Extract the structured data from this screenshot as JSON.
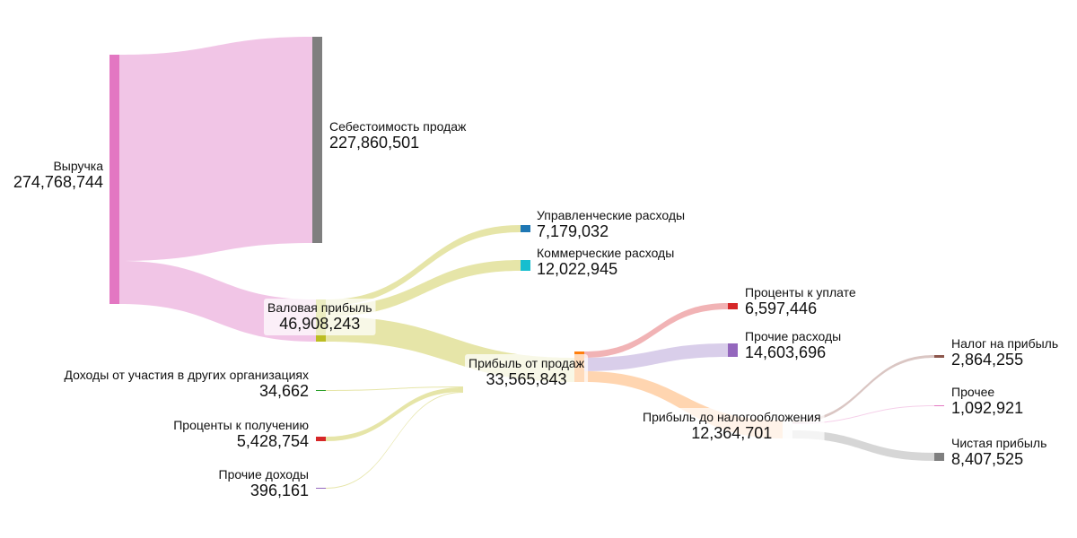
{
  "chart_data": {
    "type": "sankey",
    "nodes": [
      {
        "id": "revenue",
        "name": "Выручка",
        "value": "274,768,744",
        "color": "#e377c2"
      },
      {
        "id": "cogs",
        "name": "Себестоимость продаж",
        "value": "227,860,501",
        "color": "#7f7f7f"
      },
      {
        "id": "gross",
        "name": "Валовая прибыль",
        "value": "46,908,243",
        "color": "#bcbd22"
      },
      {
        "id": "admin",
        "name": "Управленческие расходы",
        "value": "7,179,032",
        "color": "#1f77b4"
      },
      {
        "id": "selling",
        "name": "Коммерческие расходы",
        "value": "12,022,945",
        "color": "#17becf"
      },
      {
        "id": "op",
        "name": "Прибыль от продаж",
        "value": "33,565,843",
        "color": "#ff7f0e"
      },
      {
        "id": "part",
        "name": "Доходы от участия в других организациях",
        "value": "34,662",
        "color": "#2ca02c"
      },
      {
        "id": "intrec",
        "name": "Проценты к получению",
        "value": "5,428,754",
        "color": "#d62728"
      },
      {
        "id": "othinc",
        "name": "Прочие доходы",
        "value": "396,161",
        "color": "#9467bd"
      },
      {
        "id": "intpay",
        "name": "Проценты к уплате",
        "value": "6,597,446",
        "color": "#d62728"
      },
      {
        "id": "othexp",
        "name": "Прочие расходы",
        "value": "14,603,696",
        "color": "#9467bd"
      },
      {
        "id": "pretax",
        "name": "Прибыль до налогообложения",
        "value": "12,364,701",
        "color": "#f7f7f7"
      },
      {
        "id": "tax",
        "name": "Налог на прибыль",
        "value": "2,864,255",
        "color": "#8c564b"
      },
      {
        "id": "other",
        "name": "Прочее",
        "value": "1,092,921",
        "color": "#e377c2"
      },
      {
        "id": "net",
        "name": "Чистая прибыль",
        "value": "8,407,525",
        "color": "#7f7f7f"
      }
    ],
    "links": [
      {
        "source": "revenue",
        "target": "cogs",
        "value": 227860501
      },
      {
        "source": "revenue",
        "target": "gross",
        "value": 46908243
      },
      {
        "source": "gross",
        "target": "admin",
        "value": 7179032
      },
      {
        "source": "gross",
        "target": "selling",
        "value": 12022945
      },
      {
        "source": "gross",
        "target": "op",
        "value": 27706266
      },
      {
        "source": "part",
        "target": "op",
        "value": 34662
      },
      {
        "source": "intrec",
        "target": "op",
        "value": 5428754
      },
      {
        "source": "othinc",
        "target": "op",
        "value": 396161
      },
      {
        "source": "op",
        "target": "intpay",
        "value": 6597446
      },
      {
        "source": "op",
        "target": "othexp",
        "value": 14603696
      },
      {
        "source": "op",
        "target": "pretax",
        "value": 12364701
      },
      {
        "source": "pretax",
        "target": "tax",
        "value": 2864255
      },
      {
        "source": "pretax",
        "target": "other",
        "value": 1092921
      },
      {
        "source": "pretax",
        "target": "net",
        "value": 8407525
      }
    ]
  }
}
